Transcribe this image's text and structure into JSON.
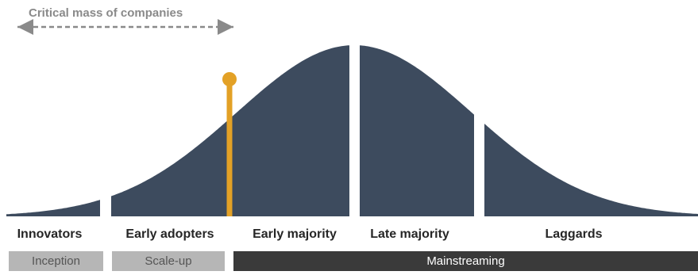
{
  "critical_mass": {
    "label": "Critical mass of companies",
    "arrow_color": "#8a8a8a"
  },
  "curve": {
    "fill_color": "#3d4b5e",
    "marker_color": "#e3a126"
  },
  "segments": [
    {
      "label": "Innovators"
    },
    {
      "label": "Early adopters"
    },
    {
      "label": "Early majority"
    },
    {
      "label": "Late majority"
    },
    {
      "label": "Laggards"
    }
  ],
  "phases": [
    {
      "label": "Inception"
    },
    {
      "label": "Scale-up"
    },
    {
      "label": "Mainstreaming"
    }
  ]
}
